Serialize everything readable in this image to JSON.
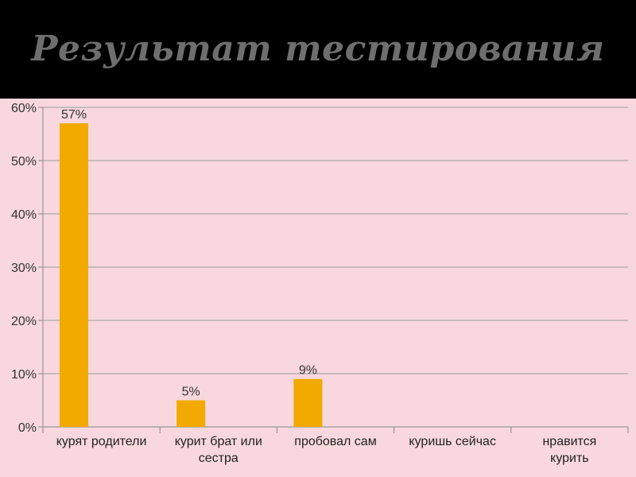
{
  "slide": {
    "title": "Результат тестирования"
  },
  "chart_data": {
    "type": "bar",
    "categories": [
      [
        "курят родители"
      ],
      [
        "курит брат или",
        "сестра"
      ],
      [
        "пробовал сам"
      ],
      [
        "куришь сейчас"
      ],
      [
        "нравится",
        "курить"
      ]
    ],
    "values": [
      57,
      5,
      9,
      null,
      null
    ],
    "data_labels": [
      "57%",
      "5%",
      "9%",
      "",
      ""
    ],
    "y_ticks": [
      "0%",
      "10%",
      "20%",
      "30%",
      "40%",
      "50%",
      "60%"
    ],
    "ylim": [
      0,
      60
    ],
    "grid": true,
    "bar_color": "#f2aa00",
    "background": "#f8d8de",
    "title": "",
    "xlabel": "",
    "ylabel": ""
  }
}
